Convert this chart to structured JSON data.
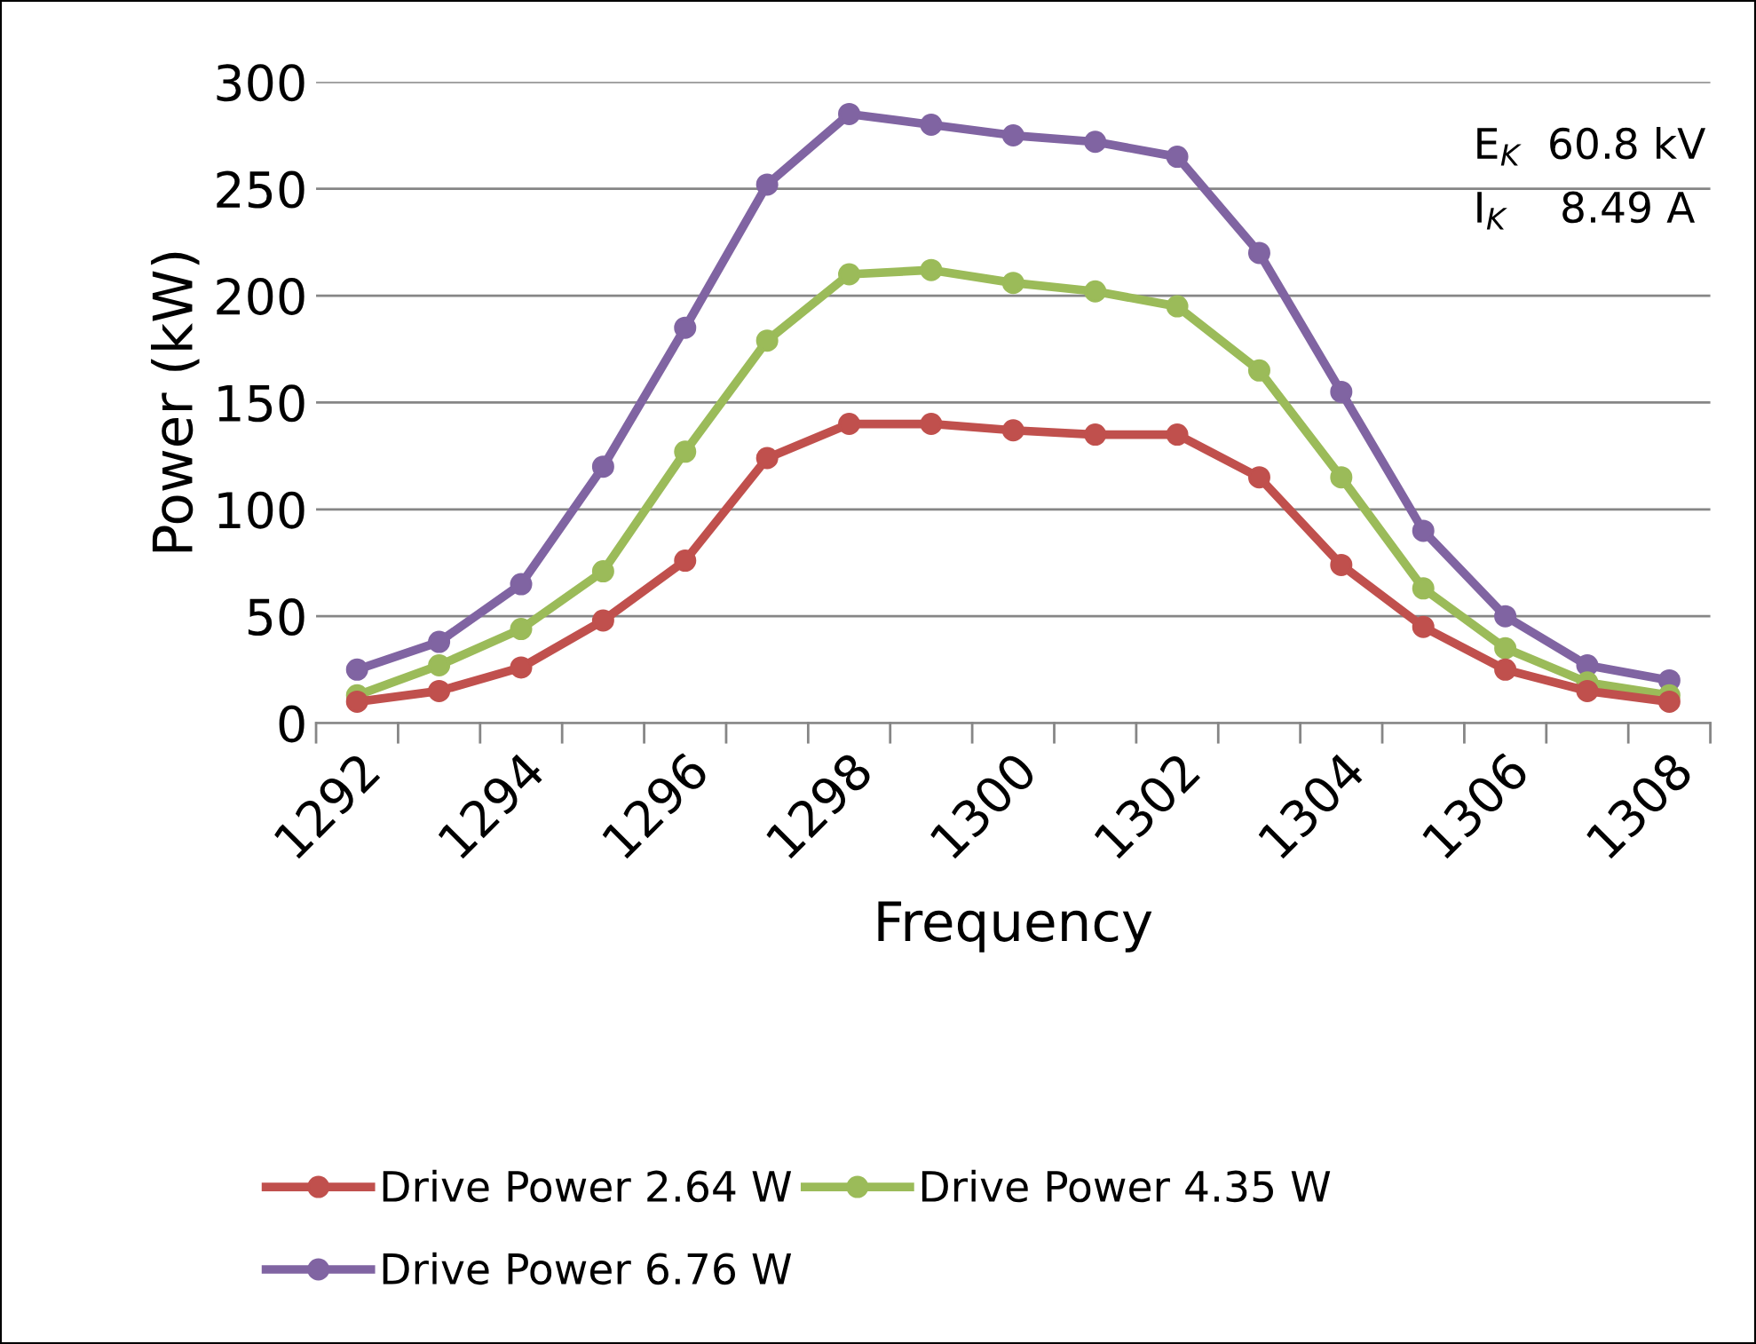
{
  "chart_data": {
    "type": "line",
    "xlabel": "Frequency",
    "ylabel": "Power (kW)",
    "categories": [
      "1292",
      null,
      "1294",
      null,
      "1296",
      null,
      "1298",
      null,
      "1300",
      null,
      "1302",
      null,
      "1304",
      null,
      "1306",
      null,
      "1308"
    ],
    "series": [
      {
        "name": "Drive Power 2.64 W",
        "color": "#c0504d",
        "values": [
          10,
          15,
          26,
          48,
          76,
          124,
          140,
          140,
          137,
          135,
          135,
          115,
          74,
          45,
          25,
          15,
          10
        ]
      },
      {
        "name": "Drive Power 4.35 W",
        "color": "#9bbb59",
        "values": [
          13,
          27,
          44,
          71,
          127,
          179,
          210,
          212,
          206,
          202,
          195,
          165,
          115,
          63,
          35,
          19,
          13
        ]
      },
      {
        "name": "Drive Power 6.76 W",
        "color": "#8064a2",
        "values": [
          25,
          38,
          65,
          120,
          185,
          252,
          285,
          280,
          275,
          272,
          265,
          220,
          155,
          90,
          50,
          27,
          20
        ]
      }
    ],
    "ylim": [
      0,
      300
    ],
    "yticks": [
      0,
      50,
      100,
      150,
      200,
      250,
      300
    ],
    "grid": "y",
    "legend": "bottom",
    "marker": "circle",
    "line_style": "solid",
    "annotations": [
      "E$_{K}$  60.8 kV",
      "I$_{K}$    8.49 A"
    ]
  }
}
